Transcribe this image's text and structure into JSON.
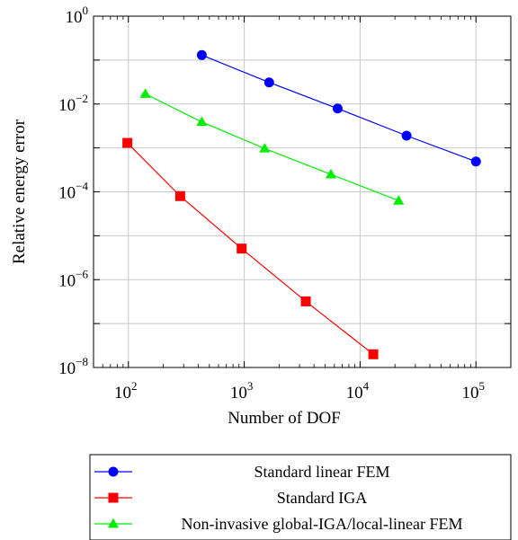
{
  "chart_data": {
    "type": "line",
    "xscale": "log",
    "yscale": "log",
    "xlim": [
      50,
      200000
    ],
    "ylim": [
      1e-08,
      1
    ],
    "xlabel": "Number of DOF",
    "ylabel": "Relative energy error",
    "grid": true,
    "legend_position": "below",
    "xticks": [
      {
        "value": 100,
        "base": "10",
        "exp": "2"
      },
      {
        "value": 1000,
        "base": "10",
        "exp": "3"
      },
      {
        "value": 10000,
        "base": "10",
        "exp": "4"
      },
      {
        "value": 100000,
        "base": "10",
        "exp": "5"
      }
    ],
    "yticks": [
      {
        "value": 1e-08,
        "base": "10",
        "exp": "−8"
      },
      {
        "value": 1e-06,
        "base": "10",
        "exp": "−6"
      },
      {
        "value": 0.0001,
        "base": "10",
        "exp": "−4"
      },
      {
        "value": 0.01,
        "base": "10",
        "exp": "−2"
      },
      {
        "value": 1,
        "base": "10",
        "exp": "0"
      }
    ],
    "series": [
      {
        "name": "Standard linear FEM",
        "color": "#0000ff",
        "marker": "circle",
        "points": [
          {
            "x": 430,
            "y": 0.13
          },
          {
            "x": 1640,
            "y": 0.031
          },
          {
            "x": 6400,
            "y": 0.0079
          },
          {
            "x": 25200,
            "y": 0.0019
          },
          {
            "x": 100000,
            "y": 0.00049
          }
        ]
      },
      {
        "name": "Standard IGA",
        "color": "#ff0000",
        "marker": "square",
        "points": [
          {
            "x": 98,
            "y": 0.0013
          },
          {
            "x": 280,
            "y": 8e-05
          },
          {
            "x": 950,
            "y": 5.1e-06
          },
          {
            "x": 3400,
            "y": 3.2e-07
          },
          {
            "x": 13000,
            "y": 2e-08
          }
        ]
      },
      {
        "name": "Non-invasive global-IGA/local-linear FEM",
        "color": "#00ee00",
        "marker": "triangle",
        "points": [
          {
            "x": 140,
            "y": 0.017
          },
          {
            "x": 430,
            "y": 0.0039
          },
          {
            "x": 1500,
            "y": 0.00097
          },
          {
            "x": 5600,
            "y": 0.00025
          },
          {
            "x": 21500,
            "y": 6.3e-05
          }
        ]
      }
    ]
  }
}
